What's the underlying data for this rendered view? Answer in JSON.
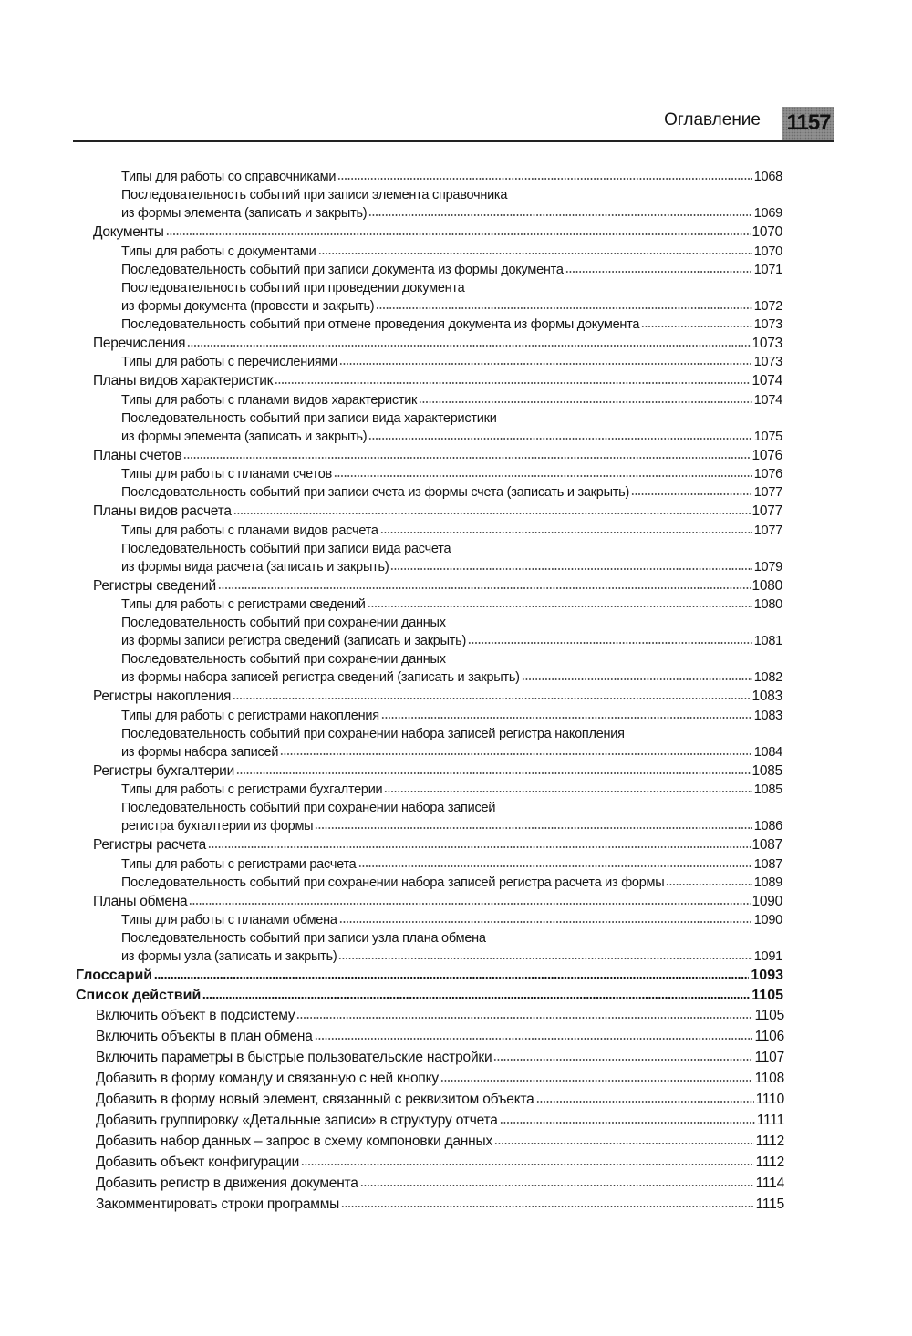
{
  "header": {
    "section_title": "Оглавление",
    "page_number": "1157"
  },
  "entries": [
    {
      "level": "l3",
      "title": "Типы для работы со справочниками",
      "page": "1068"
    },
    {
      "level": "l3",
      "title": "Последовательность событий при записи элемента справочника",
      "page": ""
    },
    {
      "level": "l3",
      "title": "из формы элемента (записать и закрыть)",
      "page": "1069"
    },
    {
      "level": "l2",
      "title": "Документы",
      "page": "1070"
    },
    {
      "level": "l3",
      "title": "Типы для работы с документами",
      "page": "1070"
    },
    {
      "level": "l3",
      "title": "Последовательность событий при записи документа из формы документа",
      "page": "1071"
    },
    {
      "level": "l3",
      "title": "Последовательность событий при проведении документа",
      "page": ""
    },
    {
      "level": "l3",
      "title": "из формы документа (провести и закрыть)",
      "page": "1072"
    },
    {
      "level": "l3",
      "title": "Последовательность событий при отмене проведения документа из формы документа",
      "page": "1073"
    },
    {
      "level": "l2",
      "title": "Перечисления",
      "page": "1073"
    },
    {
      "level": "l3",
      "title": "Типы для работы с перечислениями",
      "page": "1073"
    },
    {
      "level": "l2",
      "title": "Планы видов характеристик",
      "page": "1074"
    },
    {
      "level": "l3",
      "title": "Типы для работы с планами видов характеристик",
      "page": "1074"
    },
    {
      "level": "l3",
      "title": "Последовательность событий при записи вида характеристики",
      "page": ""
    },
    {
      "level": "l3",
      "title": "из формы элемента (записать и закрыть)",
      "page": "1075"
    },
    {
      "level": "l2",
      "title": "Планы счетов",
      "page": "1076"
    },
    {
      "level": "l3",
      "title": "Типы для работы с планами счетов",
      "page": "1076"
    },
    {
      "level": "l3",
      "title": "Последовательность событий при записи счета из формы счета (записать и закрыть)",
      "page": "1077"
    },
    {
      "level": "l2",
      "title": "Планы видов расчета",
      "page": "1077"
    },
    {
      "level": "l3",
      "title": "Типы для работы с планами видов расчета",
      "page": "1077"
    },
    {
      "level": "l3",
      "title": "Последовательность событий при записи вида расчета",
      "page": ""
    },
    {
      "level": "l3",
      "title": "из формы вида расчета (записать и закрыть)",
      "page": "1079"
    },
    {
      "level": "l2",
      "title": "Регистры сведений",
      "page": "1080"
    },
    {
      "level": "l3",
      "title": "Типы для работы с регистрами сведений",
      "page": "1080"
    },
    {
      "level": "l3",
      "title": "Последовательность событий при сохранении данных",
      "page": ""
    },
    {
      "level": "l3",
      "title": "из формы записи регистра сведений (записать и закрыть)",
      "page": "1081"
    },
    {
      "level": "l3",
      "title": "Последовательность событий при сохранении данных",
      "page": ""
    },
    {
      "level": "l3",
      "title": "из формы набора записей регистра сведений (записать и закрыть)",
      "page": "1082"
    },
    {
      "level": "l2",
      "title": "Регистры накопления",
      "page": "1083"
    },
    {
      "level": "l3",
      "title": "Типы для работы с регистрами накопления",
      "page": "1083"
    },
    {
      "level": "l3",
      "title": "Последовательность событий при сохранении набора записей регистра накопления",
      "page": ""
    },
    {
      "level": "l3",
      "title": "из формы набора записей",
      "page": "1084"
    },
    {
      "level": "l2",
      "title": "Регистры бухгалтерии",
      "page": "1085"
    },
    {
      "level": "l3",
      "title": "Типы для работы с регистрами бухгалтерии",
      "page": "1085"
    },
    {
      "level": "l3",
      "title": "Последовательность событий при сохранении набора записей",
      "page": ""
    },
    {
      "level": "l3",
      "title": "регистра бухгалтерии из формы",
      "page": "1086"
    },
    {
      "level": "l2",
      "title": "Регистры расчета",
      "page": "1087"
    },
    {
      "level": "l3",
      "title": "Типы для работы с регистрами расчета",
      "page": "1087"
    },
    {
      "level": "l3",
      "title": "Последовательность событий при сохранении набора записей регистра расчета из формы",
      "page": "1089"
    },
    {
      "level": "l2",
      "title": "Планы обмена",
      "page": "1090"
    },
    {
      "level": "l3",
      "title": "Типы для работы с планами обмена",
      "page": "1090"
    },
    {
      "level": "l3",
      "title": "Последовательность событий при записи узла плана обмена",
      "page": ""
    },
    {
      "level": "l3",
      "title": "из формы узла (записать и закрыть)",
      "page": "1091"
    },
    {
      "level": "l1",
      "title": "Глоссарий",
      "page": "1093"
    },
    {
      "level": "l1",
      "title": "Список действий",
      "page": "1105"
    },
    {
      "level": "l2b",
      "title": "Включить объект в подсистему",
      "page": "1105"
    },
    {
      "level": "l2b",
      "title": "Включить объекты в план обмена",
      "page": "1106"
    },
    {
      "level": "l2b",
      "title": "Включить параметры в быстрые пользовательские настройки",
      "page": "1107"
    },
    {
      "level": "l2b",
      "title": "Добавить в форму команду и связанную с ней кнопку",
      "page": "1108"
    },
    {
      "level": "l2b",
      "title": "Добавить в форму новый элемент, связанный с реквизитом объекта",
      "page": "1110"
    },
    {
      "level": "l2b",
      "title": "Добавить группировку «Детальные записи» в структуру отчета",
      "page": "1111"
    },
    {
      "level": "l2b",
      "title": "Добавить набор данных – запрос в схему компоновки данных",
      "page": "1112"
    },
    {
      "level": "l2b",
      "title": "Добавить объект конфигурации",
      "page": "1112"
    },
    {
      "level": "l2b",
      "title": "Добавить регистр в движения документа",
      "page": "1114"
    },
    {
      "level": "l2b",
      "title": "Закомментировать строки программы",
      "page": "1115"
    }
  ]
}
